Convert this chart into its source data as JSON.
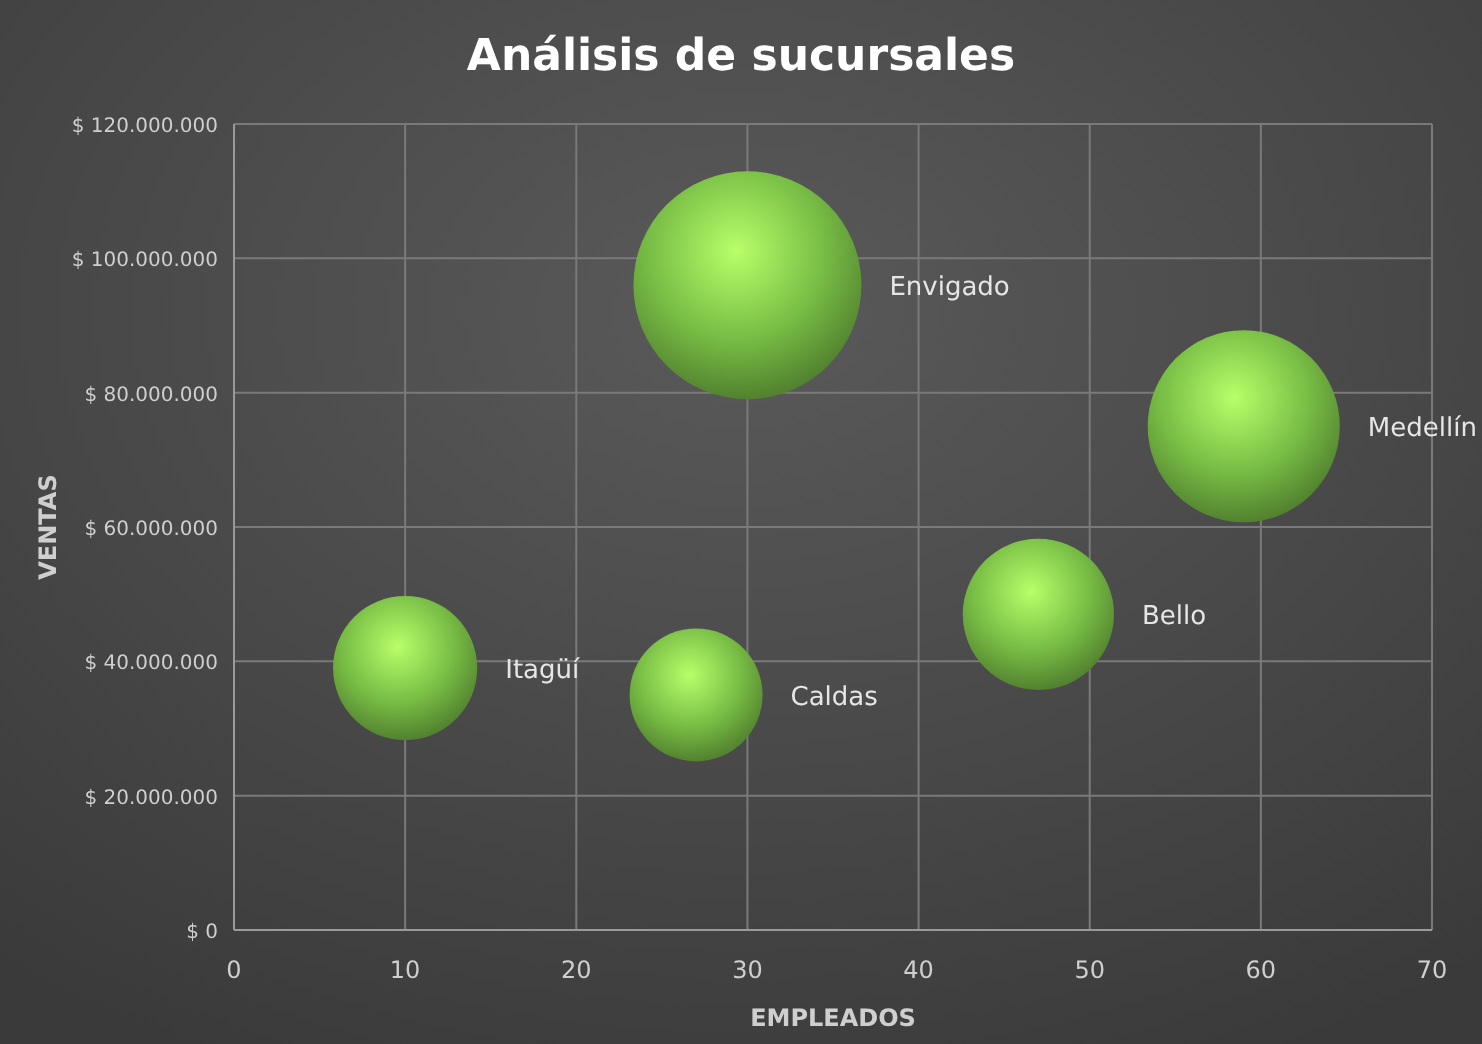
{
  "chart_data": {
    "type": "bubble",
    "title": "Análisis de sucursales",
    "xlabel": "EMPLEADOS",
    "ylabel": "VENTAS",
    "xlim": [
      0,
      70
    ],
    "xticks": [
      0,
      10,
      20,
      30,
      40,
      50,
      60,
      70
    ],
    "ylim": [
      0,
      120000000
    ],
    "yticks": [
      {
        "value": 0,
        "label": "$ 0"
      },
      {
        "value": 20000000,
        "label": "$ 20.000.000"
      },
      {
        "value": 40000000,
        "label": "$ 40.000.000"
      },
      {
        "value": 60000000,
        "label": "$ 60.000.000"
      },
      {
        "value": 80000000,
        "label": "$ 80.000.000"
      },
      {
        "value": 100000000,
        "label": "$ 100.000.000"
      },
      {
        "value": 120000000,
        "label": "$ 120.000.000"
      }
    ],
    "grid": true,
    "series": [
      {
        "name": "Itagüí",
        "color": "#78bd45",
        "x": [
          10
        ],
        "values": [
          39000000
        ],
        "sizes": [
          0.4
        ]
      },
      {
        "name": "Caldas",
        "color": "#78bd45",
        "x": [
          27
        ],
        "values": [
          35000000
        ],
        "sizes": [
          0.34
        ]
      },
      {
        "name": "Envigado",
        "color": "#78bd45",
        "x": [
          30
        ],
        "values": [
          96000000
        ],
        "sizes": [
          1
        ]
      },
      {
        "name": "Bello",
        "color": "#78bd45",
        "x": [
          47
        ],
        "values": [
          47000000
        ],
        "sizes": [
          0.44
        ]
      },
      {
        "name": "Medellín",
        "color": "#78bd45",
        "x": [
          59
        ],
        "values": [
          75000000
        ],
        "sizes": [
          0.71
        ]
      }
    ]
  }
}
